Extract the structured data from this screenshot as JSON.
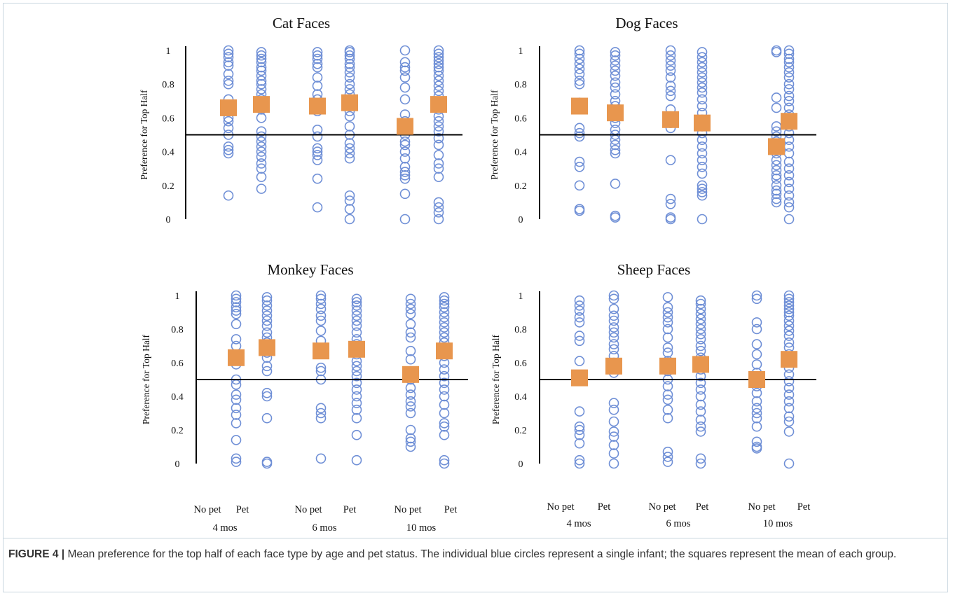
{
  "figure": {
    "caption_label": "FIGURE 4 |",
    "caption_text": " Mean preference for the top half of each face type by age and pet status. The individual blue circles represent a single infant; the squares represent the mean of each group."
  },
  "colors": {
    "individual": "#6f8fd6",
    "mean": "#e8964e",
    "axis": "#000000"
  },
  "chart_data": [
    {
      "type": "scatter",
      "title": "Cat Faces",
      "ylabel": "Preference for Top Half",
      "ylim": [
        0,
        1
      ],
      "yticks": [
        "0",
        "0.2",
        "0.4",
        "0.6",
        "0.8",
        "1"
      ],
      "reference_line": 0.5,
      "group_labels": [
        "No pet",
        "Pet",
        "No pet",
        "Pet",
        "No pet",
        "Pet"
      ],
      "age_labels": [
        "4 mos",
        "6 mos",
        "10 mos"
      ],
      "groups": [
        {
          "age": "4 mos",
          "pet": "No pet",
          "mean": 0.66,
          "points": [
            1.0,
            0.98,
            0.96,
            0.93,
            0.91,
            0.86,
            0.82,
            0.8,
            0.71,
            0.67,
            0.64,
            0.6,
            0.58,
            0.54,
            0.5,
            0.43,
            0.41,
            0.39,
            0.14
          ]
        },
        {
          "age": "4 mos",
          "pet": "Pet",
          "mean": 0.68,
          "points": [
            0.99,
            0.97,
            0.95,
            0.93,
            0.9,
            0.88,
            0.85,
            0.82,
            0.8,
            0.77,
            0.74,
            0.71,
            0.68,
            0.65,
            0.6,
            0.52,
            0.49,
            0.46,
            0.43,
            0.4,
            0.37,
            0.33,
            0.3,
            0.25,
            0.18
          ]
        },
        {
          "age": "6 mos",
          "pet": "No pet",
          "mean": 0.67,
          "points": [
            0.99,
            0.97,
            0.95,
            0.92,
            0.9,
            0.84,
            0.79,
            0.74,
            0.71,
            0.67,
            0.64,
            0.53,
            0.49,
            0.42,
            0.4,
            0.38,
            0.35,
            0.24,
            0.07
          ]
        },
        {
          "age": "6 mos",
          "pet": "Pet",
          "mean": 0.69,
          "points": [
            1.0,
            0.99,
            0.97,
            0.95,
            0.92,
            0.9,
            0.87,
            0.84,
            0.8,
            0.77,
            0.74,
            0.7,
            0.67,
            0.64,
            0.61,
            0.55,
            0.5,
            0.45,
            0.42,
            0.39,
            0.36,
            0.14,
            0.11,
            0.06,
            0.0
          ]
        },
        {
          "age": "10 mos",
          "pet": "No pet",
          "mean": 0.55,
          "points": [
            1.0,
            0.93,
            0.9,
            0.88,
            0.84,
            0.78,
            0.71,
            0.62,
            0.58,
            0.55,
            0.5,
            0.46,
            0.44,
            0.4,
            0.36,
            0.31,
            0.28,
            0.26,
            0.24,
            0.15,
            0.0
          ]
        },
        {
          "age": "10 mos",
          "pet": "Pet",
          "mean": 0.68,
          "points": [
            1.0,
            0.98,
            0.96,
            0.94,
            0.92,
            0.9,
            0.88,
            0.85,
            0.82,
            0.79,
            0.76,
            0.73,
            0.69,
            0.65,
            0.61,
            0.58,
            0.55,
            0.52,
            0.48,
            0.44,
            0.38,
            0.33,
            0.3,
            0.25,
            0.1,
            0.07,
            0.04,
            0.0
          ]
        }
      ]
    },
    {
      "type": "scatter",
      "title": "Dog Faces",
      "ylabel": "Preference for Top Half",
      "ylim": [
        0,
        1
      ],
      "yticks": [
        "0",
        "0.2",
        "0.4",
        "0.6",
        "0.8",
        "1"
      ],
      "reference_line": 0.5,
      "group_labels": [
        "No pet",
        "Pet",
        "No pet",
        "Pet",
        "No pet",
        "Pet"
      ],
      "age_labels": [
        "4 mos",
        "6 mos",
        "10 mos"
      ],
      "groups": [
        {
          "age": "4 mos",
          "pet": "No pet",
          "mean": 0.67,
          "points": [
            1.0,
            0.98,
            0.95,
            0.92,
            0.89,
            0.86,
            0.82,
            0.8,
            0.69,
            0.67,
            0.54,
            0.51,
            0.49,
            0.34,
            0.31,
            0.2,
            0.06,
            0.05
          ]
        },
        {
          "age": "4 mos",
          "pet": "Pet",
          "mean": 0.63,
          "points": [
            0.99,
            0.97,
            0.94,
            0.91,
            0.88,
            0.85,
            0.81,
            0.78,
            0.74,
            0.7,
            0.67,
            0.64,
            0.6,
            0.57,
            0.53,
            0.5,
            0.47,
            0.44,
            0.41,
            0.39,
            0.21,
            0.02,
            0.01
          ]
        },
        {
          "age": "6 mos",
          "pet": "No pet",
          "mean": 0.59,
          "points": [
            1.0,
            0.97,
            0.94,
            0.91,
            0.88,
            0.84,
            0.79,
            0.76,
            0.73,
            0.65,
            0.61,
            0.57,
            0.54,
            0.35,
            0.12,
            0.09,
            0.01,
            0.0
          ]
        },
        {
          "age": "6 mos",
          "pet": "Pet",
          "mean": 0.57,
          "points": [
            0.99,
            0.96,
            0.93,
            0.9,
            0.87,
            0.84,
            0.81,
            0.78,
            0.75,
            0.71,
            0.67,
            0.63,
            0.59,
            0.55,
            0.51,
            0.47,
            0.43,
            0.39,
            0.35,
            0.31,
            0.27,
            0.2,
            0.18,
            0.16,
            0.14,
            0.0
          ]
        },
        {
          "age": "10 mos",
          "pet": "No pet",
          "mean": 0.43,
          "points": [
            1.0,
            0.99,
            0.72,
            0.66,
            0.55,
            0.52,
            0.49,
            0.46,
            0.43,
            0.39,
            0.35,
            0.32,
            0.29,
            0.26,
            0.24,
            0.2,
            0.17,
            0.15,
            0.12,
            0.1
          ]
        },
        {
          "age": "10 mos",
          "pet": "Pet",
          "mean": 0.58,
          "points": [
            1.0,
            0.98,
            0.95,
            0.93,
            0.9,
            0.87,
            0.84,
            0.8,
            0.77,
            0.73,
            0.7,
            0.66,
            0.62,
            0.59,
            0.55,
            0.51,
            0.47,
            0.43,
            0.39,
            0.34,
            0.3,
            0.26,
            0.22,
            0.18,
            0.14,
            0.1,
            0.07,
            0.0
          ]
        }
      ]
    },
    {
      "type": "scatter",
      "title": "Monkey Faces",
      "ylabel": "Preference for Top Half",
      "ylim": [
        0,
        1
      ],
      "yticks": [
        "0",
        "0.2",
        "0.4",
        "0.6",
        "0.8",
        "1"
      ],
      "reference_line": 0.5,
      "group_labels": [
        "No pet",
        "Pet",
        "No pet",
        "Pet",
        "No pet",
        "Pet"
      ],
      "age_labels": [
        "4 mos",
        "6 mos",
        "10 mos"
      ],
      "groups": [
        {
          "age": "4 mos",
          "pet": "No pet",
          "mean": 0.63,
          "points": [
            1.0,
            0.98,
            0.96,
            0.93,
            0.91,
            0.89,
            0.83,
            0.74,
            0.7,
            0.63,
            0.59,
            0.5,
            0.47,
            0.41,
            0.38,
            0.33,
            0.29,
            0.24,
            0.14,
            0.03,
            0.01
          ]
        },
        {
          "age": "4 mos",
          "pet": "Pet",
          "mean": 0.69,
          "points": [
            0.99,
            0.97,
            0.94,
            0.91,
            0.88,
            0.85,
            0.82,
            0.78,
            0.75,
            0.72,
            0.69,
            0.66,
            0.63,
            0.58,
            0.55,
            0.42,
            0.4,
            0.27,
            0.01,
            0.0
          ]
        },
        {
          "age": "6 mos",
          "pet": "No pet",
          "mean": 0.67,
          "points": [
            1.0,
            0.98,
            0.95,
            0.92,
            0.88,
            0.85,
            0.79,
            0.73,
            0.66,
            0.57,
            0.55,
            0.5,
            0.33,
            0.3,
            0.27,
            0.03
          ]
        },
        {
          "age": "6 mos",
          "pet": "Pet",
          "mean": 0.68,
          "points": [
            0.98,
            0.96,
            0.94,
            0.91,
            0.88,
            0.85,
            0.82,
            0.78,
            0.74,
            0.71,
            0.68,
            0.65,
            0.61,
            0.58,
            0.55,
            0.52,
            0.48,
            0.44,
            0.4,
            0.36,
            0.32,
            0.27,
            0.17,
            0.02
          ]
        },
        {
          "age": "10 mos",
          "pet": "No pet",
          "mean": 0.53,
          "points": [
            0.98,
            0.95,
            0.92,
            0.89,
            0.83,
            0.78,
            0.75,
            0.67,
            0.62,
            0.55,
            0.5,
            0.45,
            0.41,
            0.37,
            0.34,
            0.3,
            0.2,
            0.15,
            0.13,
            0.1
          ]
        },
        {
          "age": "10 mos",
          "pet": "Pet",
          "mean": 0.67,
          "points": [
            0.99,
            0.97,
            0.95,
            0.93,
            0.9,
            0.87,
            0.84,
            0.81,
            0.78,
            0.75,
            0.72,
            0.68,
            0.64,
            0.6,
            0.56,
            0.52,
            0.48,
            0.44,
            0.4,
            0.35,
            0.3,
            0.24,
            0.22,
            0.17,
            0.02,
            0.0
          ]
        }
      ]
    },
    {
      "type": "scatter",
      "title": "Sheep Faces",
      "ylabel": "Preference for Top Half",
      "ylim": [
        0,
        1
      ],
      "yticks": [
        "0",
        "0.2",
        "0.4",
        "0.6",
        "0.8",
        "1"
      ],
      "reference_line": 0.5,
      "group_labels": [
        "No pet",
        "Pet",
        "No pet",
        "Pet",
        "No pet",
        "Pet"
      ],
      "age_labels": [
        "4 mos",
        "6 mos",
        "10 mos"
      ],
      "groups": [
        {
          "age": "4 mos",
          "pet": "No pet",
          "mean": 0.51,
          "points": [
            0.97,
            0.94,
            0.91,
            0.87,
            0.84,
            0.76,
            0.73,
            0.61,
            0.52,
            0.5,
            0.31,
            0.22,
            0.2,
            0.17,
            0.12,
            0.02,
            0.0
          ]
        },
        {
          "age": "4 mos",
          "pet": "Pet",
          "mean": 0.58,
          "points": [
            1.0,
            0.98,
            0.92,
            0.88,
            0.85,
            0.81,
            0.78,
            0.75,
            0.71,
            0.68,
            0.64,
            0.6,
            0.57,
            0.54,
            0.36,
            0.32,
            0.25,
            0.19,
            0.16,
            0.11,
            0.06,
            0.0
          ]
        },
        {
          "age": "6 mos",
          "pet": "No pet",
          "mean": 0.58,
          "points": [
            0.99,
            0.93,
            0.9,
            0.87,
            0.84,
            0.8,
            0.75,
            0.69,
            0.66,
            0.61,
            0.55,
            0.5,
            0.46,
            0.41,
            0.38,
            0.32,
            0.27,
            0.07,
            0.04,
            0.01
          ]
        },
        {
          "age": "6 mos",
          "pet": "Pet",
          "mean": 0.59,
          "points": [
            0.97,
            0.95,
            0.92,
            0.89,
            0.86,
            0.83,
            0.8,
            0.77,
            0.74,
            0.7,
            0.67,
            0.63,
            0.6,
            0.56,
            0.52,
            0.48,
            0.44,
            0.4,
            0.35,
            0.31,
            0.26,
            0.22,
            0.19,
            0.03,
            0.0
          ]
        },
        {
          "age": "10 mos",
          "pet": "No pet",
          "mean": 0.5,
          "points": [
            1.0,
            0.98,
            0.84,
            0.8,
            0.71,
            0.65,
            0.59,
            0.54,
            0.5,
            0.46,
            0.42,
            0.37,
            0.33,
            0.3,
            0.27,
            0.22,
            0.13,
            0.1,
            0.09
          ]
        },
        {
          "age": "10 mos",
          "pet": "Pet",
          "mean": 0.62,
          "points": [
            1.0,
            0.98,
            0.96,
            0.94,
            0.92,
            0.9,
            0.88,
            0.85,
            0.82,
            0.79,
            0.76,
            0.72,
            0.69,
            0.65,
            0.61,
            0.57,
            0.53,
            0.49,
            0.45,
            0.41,
            0.37,
            0.33,
            0.28,
            0.25,
            0.19,
            0.0
          ]
        }
      ]
    }
  ]
}
